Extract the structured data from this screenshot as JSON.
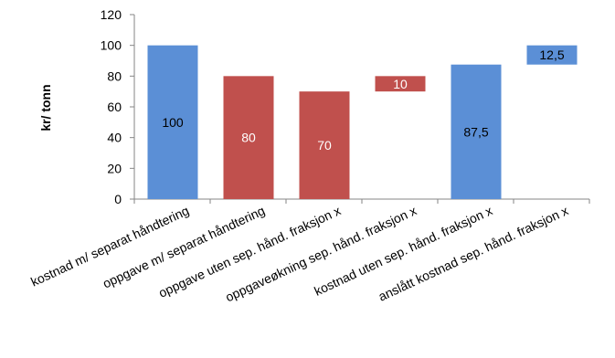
{
  "chart_data": {
    "type": "bar",
    "title": "",
    "xlabel": "",
    "ylabel": "kr/ tonn",
    "ylim": [
      0,
      120
    ],
    "yticks": [
      0,
      20,
      40,
      60,
      80,
      100,
      120
    ],
    "grid": false,
    "legend": "none",
    "bars": [
      {
        "category": "kostnad m/ separat håndtering",
        "bottom": 0,
        "top": 100,
        "label": "100",
        "color": "#5b8fd6",
        "label_color": "#000000"
      },
      {
        "category": "oppgave m/ separat håndtering",
        "bottom": 0,
        "top": 80,
        "label": "80",
        "color": "#c0504d",
        "label_color": "#ffffff"
      },
      {
        "category": "oppgave uten sep. hånd. fraksjon x",
        "bottom": 0,
        "top": 70,
        "label": "70",
        "color": "#c0504d",
        "label_color": "#ffffff"
      },
      {
        "category": "oppgaveøkning sep. hånd. fraksjon x",
        "bottom": 70,
        "top": 80,
        "label": "10",
        "color": "#c0504d",
        "label_color": "#ffffff"
      },
      {
        "category": "kostnad uten sep. hånd. fraksjon x",
        "bottom": 0,
        "top": 87.5,
        "label": "87,5",
        "color": "#5b8fd6",
        "label_color": "#000000"
      },
      {
        "category": "anslått kostnad sep. hånd. fraksjon x",
        "bottom": 87.5,
        "top": 100,
        "label": "12,5",
        "color": "#5b8fd6",
        "label_color": "#000000"
      }
    ]
  }
}
